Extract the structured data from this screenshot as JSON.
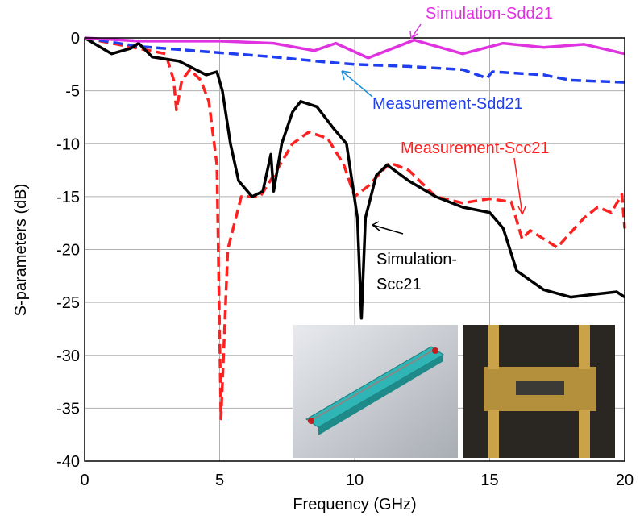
{
  "chart_data": {
    "type": "line",
    "xlabel": "Frequency (GHz)",
    "ylabel": "S-parameters (dB)",
    "xlim": [
      0,
      20
    ],
    "ylim": [
      -40,
      0
    ],
    "xticks": [
      0,
      5,
      10,
      15,
      20
    ],
    "yticks": [
      0,
      -5,
      -10,
      -15,
      -20,
      -25,
      -30,
      -35,
      -40
    ],
    "grid": true,
    "series": [
      {
        "name": "Measurement-Scc21",
        "color": "#ff2020",
        "dash": true,
        "x": [
          0,
          1,
          2,
          3,
          3.3,
          3.4,
          3.6,
          3.9,
          4.3,
          4.6,
          4.9,
          5.05,
          5.3,
          5.8,
          6.5,
          7,
          7.7,
          8.3,
          9,
          9.6,
          10,
          10.5,
          11.3,
          12,
          13,
          14,
          15,
          15.8,
          16.2,
          16.5,
          17.5,
          18.5,
          19,
          19.5,
          19.9,
          20
        ],
        "values": [
          0,
          -0.5,
          -1,
          -1.5,
          -4,
          -6.8,
          -4,
          -3,
          -4,
          -6,
          -12,
          -36,
          -20,
          -15,
          -15,
          -13,
          -10,
          -8.9,
          -9.5,
          -12,
          -15,
          -14,
          -11.8,
          -12.5,
          -15,
          -15.6,
          -15.2,
          -15.5,
          -19,
          -18.2,
          -19.8,
          -17,
          -16,
          -16.5,
          -14.8,
          -18
        ]
      },
      {
        "name": "Measurement-Sdd21",
        "color": "#1f3fef",
        "dash": true,
        "x": [
          0,
          2,
          3,
          5,
          7,
          9,
          10,
          12,
          14,
          14.9,
          15.1,
          17,
          18,
          20
        ],
        "values": [
          0,
          -0.8,
          -1,
          -1.4,
          -1.8,
          -2.3,
          -2.5,
          -2.7,
          -3,
          -3.8,
          -3.2,
          -3.5,
          -4,
          -4.2
        ]
      },
      {
        "name": "Simulation-Scc21",
        "color": "#000000",
        "dash": false,
        "x": [
          0,
          1,
          1.7,
          2,
          2.5,
          3.5,
          4.5,
          4.9,
          5.1,
          5.4,
          5.7,
          6.2,
          6.6,
          6.9,
          7,
          7.3,
          7.7,
          8,
          8.6,
          9.2,
          9.7,
          10.1,
          10.25,
          10.4,
          10.8,
          11.2,
          12,
          13,
          14,
          15,
          15.5,
          16,
          17,
          18,
          19,
          19.7,
          20
        ],
        "values": [
          0,
          -1.5,
          -1,
          -0.5,
          -1.8,
          -2.2,
          -3.5,
          -3.2,
          -5,
          -10,
          -13.5,
          -15,
          -14.5,
          -11,
          -14.5,
          -10,
          -7,
          -6,
          -6.5,
          -8.5,
          -10,
          -17,
          -26.5,
          -17,
          -13,
          -12,
          -13.5,
          -15,
          -16,
          -16.5,
          -18,
          -22,
          -23.8,
          -24.5,
          -24.2,
          -24,
          -24.5
        ]
      },
      {
        "name": "Simulation-Sdd21",
        "color": "#e033e0",
        "dash": false,
        "x": [
          0,
          2,
          5,
          7,
          8.5,
          9.3,
          10.5,
          12.2,
          14,
          15.5,
          17,
          18.5,
          20
        ],
        "values": [
          0,
          -0.3,
          -0.3,
          -0.5,
          -1.2,
          -0.5,
          -1.9,
          -0.2,
          -1.5,
          -0.5,
          -0.9,
          -0.6,
          -1.5
        ]
      }
    ]
  }
}
